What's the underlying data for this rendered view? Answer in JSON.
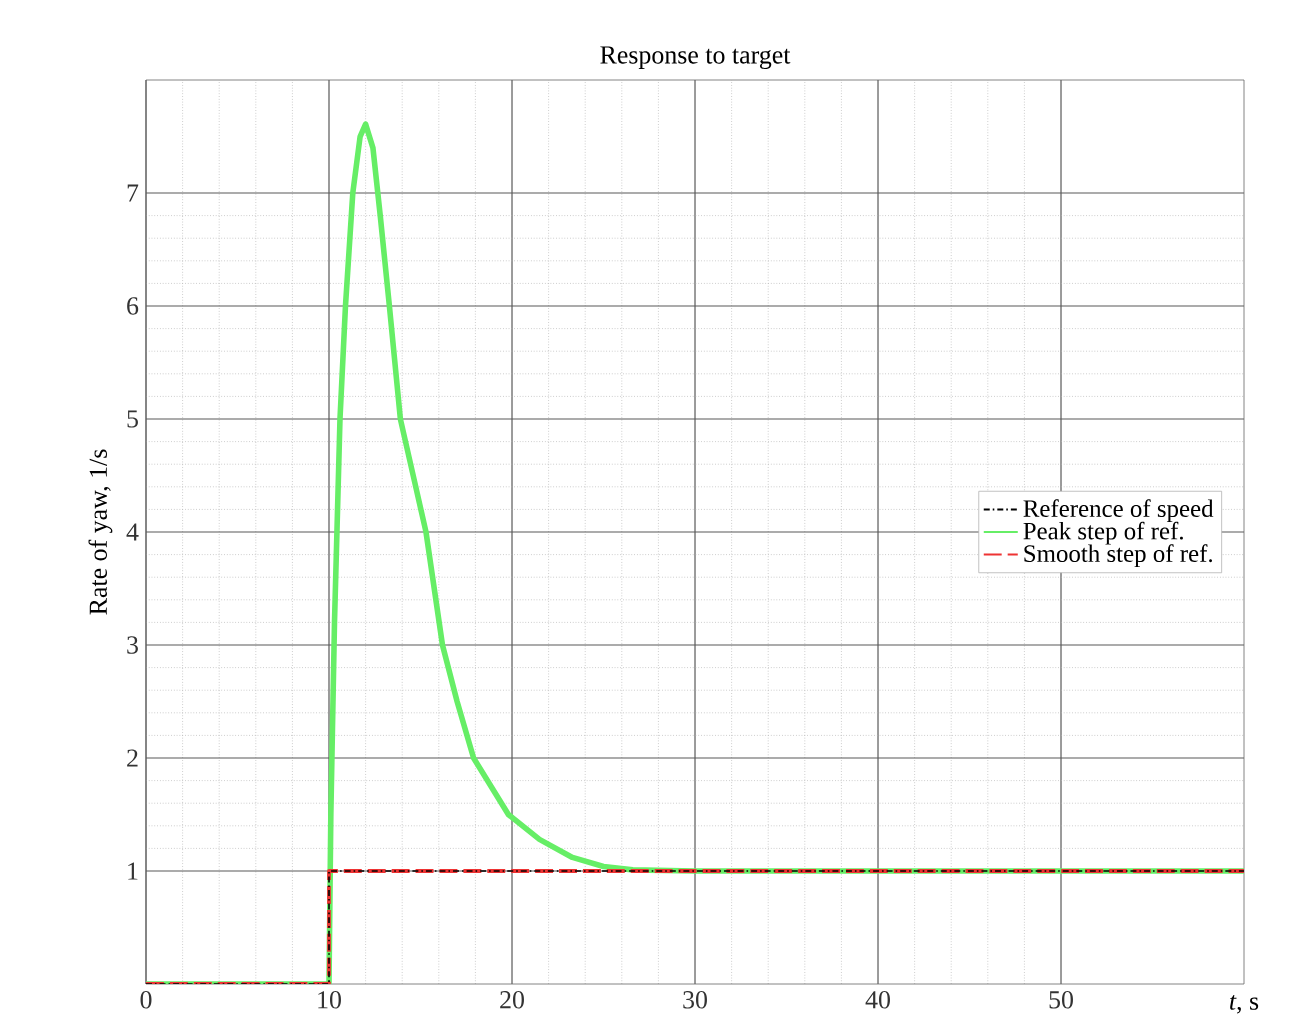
{
  "chart_data": {
    "type": "line",
    "title": "Response to target",
    "xlabel": "*t*, s",
    "ylabel": "Rate of yaw, 1/s",
    "xlim": [
      0,
      60
    ],
    "ylim": [
      0,
      8
    ],
    "xticks": [
      0,
      10,
      20,
      30,
      40,
      50
    ],
    "yticks": [
      1,
      2,
      3,
      4,
      5,
      6,
      7
    ],
    "grid": true,
    "legend": "right",
    "series": [
      {
        "name": "Reference of speed",
        "color": "#000000",
        "line_style": "dashdot",
        "x": [
          0,
          10,
          10,
          60
        ],
        "values": [
          0,
          0,
          1,
          1
        ]
      },
      {
        "name": "Peak step of ref.",
        "color": "#66ee66",
        "line_style": "solid",
        "x": [
          0,
          10,
          10.1,
          10.3,
          10.6,
          10.9,
          11.3,
          11.7,
          12,
          12.4,
          12.8,
          13.3,
          13.9,
          14.6,
          15.3,
          16.2,
          17,
          17.9,
          19.8,
          21.5,
          23.3,
          25,
          26.6,
          30,
          60
        ],
        "values": [
          0,
          0,
          1.5,
          3.2,
          5,
          6,
          7,
          7.5,
          7.61,
          7.4,
          6.8,
          6,
          5,
          4.5,
          4,
          3,
          2.5,
          2,
          1.5,
          1.28,
          1.12,
          1.04,
          1.01,
          1,
          1
        ]
      },
      {
        "name": "Smooth step of ref.",
        "color": "#ee3333",
        "line_style": "dashed",
        "x": [
          0,
          10,
          10,
          60
        ],
        "values": [
          0,
          0,
          1,
          1
        ]
      }
    ]
  }
}
